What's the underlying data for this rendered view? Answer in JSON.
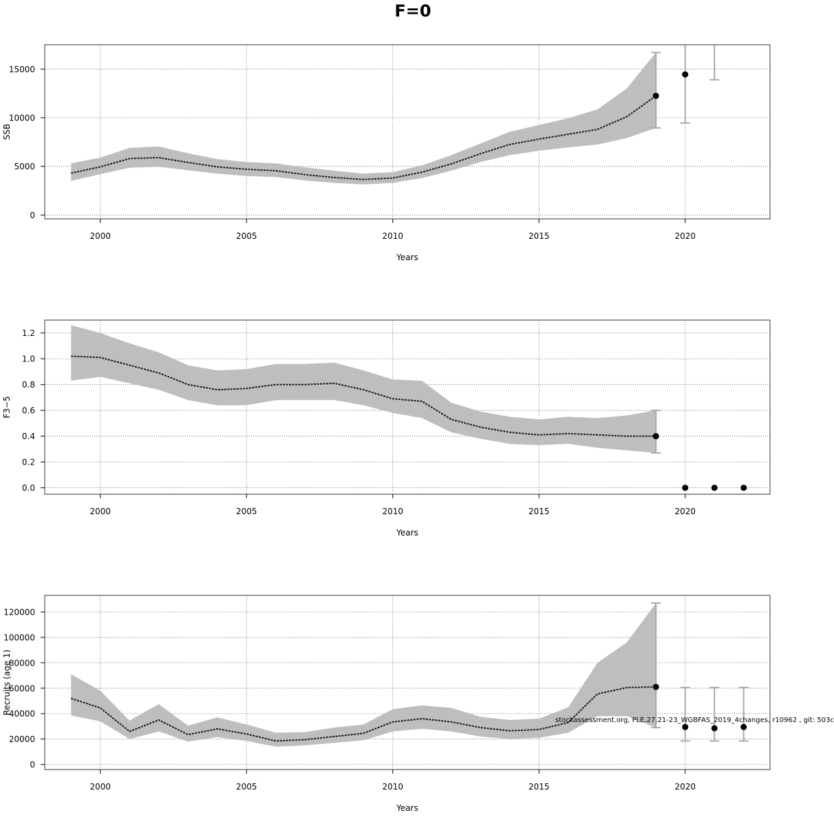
{
  "title": "F=0",
  "footnote": "stockassessment.org, PLE.27.21-23_WGBFAS_2019_4changes, r10962 , git: 503c",
  "colors": {
    "band": "#bebebe",
    "line": "#1a1a1a",
    "point": "#000000",
    "errorbar": "#a9a9a9",
    "grid": "#555555"
  },
  "chart_data": [
    {
      "type": "line",
      "ylabel": "SSB",
      "xlabel": "Years",
      "xlim": [
        1998.1,
        2022.9
      ],
      "ylim": [
        -400,
        17500
      ],
      "xticks": [
        2000,
        2005,
        2010,
        2015,
        2020
      ],
      "yticks": [
        0,
        5000,
        10000,
        15000
      ],
      "grid": true,
      "series": [
        {
          "x": [
            1999,
            2000,
            2001,
            2002,
            2003,
            2004,
            2005,
            2006,
            2007,
            2008,
            2009,
            2010,
            2011,
            2012,
            2013,
            2014,
            2015,
            2016,
            2017,
            2018,
            2019
          ],
          "estimate": [
            4300,
            4950,
            5800,
            5900,
            5400,
            4950,
            4700,
            4550,
            4150,
            3850,
            3650,
            3800,
            4400,
            5250,
            6300,
            7250,
            7800,
            8300,
            8800,
            10100,
            12250
          ],
          "lower": [
            3500,
            4200,
            4850,
            4950,
            4600,
            4250,
            4000,
            3900,
            3550,
            3300,
            3150,
            3300,
            3800,
            4550,
            5450,
            6150,
            6600,
            6950,
            7250,
            7900,
            8950
          ],
          "upper": [
            5300,
            5900,
            6900,
            7050,
            6350,
            5750,
            5450,
            5300,
            4900,
            4550,
            4250,
            4400,
            5100,
            6150,
            7350,
            8550,
            9250,
            9950,
            10850,
            13000,
            16700
          ]
        }
      ],
      "forecast": [
        {
          "x": 2019,
          "value": 12250,
          "lower": 8950,
          "upper": 16700
        },
        {
          "x": 2020,
          "value": 14450,
          "lower": 9450,
          "upper": 17600
        },
        {
          "x": 2021,
          "lower": 13900,
          "upper": 17600
        }
      ]
    },
    {
      "type": "line",
      "ylabel": "F3−5",
      "xlabel": "Years",
      "xlim": [
        1998.1,
        2022.9
      ],
      "ylim": [
        -0.05,
        1.3
      ],
      "xticks": [
        2000,
        2005,
        2010,
        2015,
        2020
      ],
      "yticks": [
        0.0,
        0.2,
        0.4,
        0.6,
        0.8,
        1.0,
        1.2
      ],
      "ytick_labels": [
        "0.0",
        "0.2",
        "0.4",
        "0.6",
        "0.8",
        "1.0",
        "1.2"
      ],
      "grid": true,
      "series": [
        {
          "x": [
            1999,
            2000,
            2001,
            2002,
            2003,
            2004,
            2005,
            2006,
            2007,
            2008,
            2009,
            2010,
            2011,
            2012,
            2013,
            2014,
            2015,
            2016,
            2017,
            2018,
            2019
          ],
          "estimate": [
            1.02,
            1.01,
            0.95,
            0.89,
            0.8,
            0.76,
            0.77,
            0.8,
            0.8,
            0.81,
            0.76,
            0.69,
            0.67,
            0.53,
            0.47,
            0.43,
            0.41,
            0.42,
            0.41,
            0.4,
            0.4
          ],
          "lower": [
            0.83,
            0.86,
            0.81,
            0.76,
            0.68,
            0.64,
            0.64,
            0.68,
            0.68,
            0.68,
            0.64,
            0.58,
            0.54,
            0.43,
            0.38,
            0.34,
            0.33,
            0.34,
            0.31,
            0.29,
            0.27
          ],
          "upper": [
            1.26,
            1.2,
            1.12,
            1.05,
            0.95,
            0.91,
            0.92,
            0.96,
            0.96,
            0.97,
            0.91,
            0.84,
            0.83,
            0.66,
            0.59,
            0.55,
            0.53,
            0.55,
            0.54,
            0.56,
            0.6
          ]
        }
      ],
      "forecast": [
        {
          "x": 2019,
          "value": 0.4,
          "lower": 0.27,
          "upper": 0.6
        },
        {
          "x": 2020,
          "value": 0.0
        },
        {
          "x": 2021,
          "value": 0.0
        },
        {
          "x": 2022,
          "value": 0.0
        }
      ]
    },
    {
      "type": "line",
      "ylabel": "Recruits (age 1)",
      "xlabel": "Years",
      "xlim": [
        1998.1,
        2022.9
      ],
      "ylim": [
        -4000,
        133000
      ],
      "xticks": [
        2000,
        2005,
        2010,
        2015,
        2020
      ],
      "yticks": [
        0,
        20000,
        40000,
        60000,
        80000,
        100000,
        120000
      ],
      "grid": true,
      "series": [
        {
          "x": [
            1999,
            2000,
            2001,
            2002,
            2003,
            2004,
            2005,
            2006,
            2007,
            2008,
            2009,
            2010,
            2011,
            2012,
            2013,
            2014,
            2015,
            2016,
            2017,
            2018,
            2019
          ],
          "estimate": [
            52000,
            44500,
            26000,
            35000,
            23500,
            28000,
            24000,
            18500,
            19500,
            22000,
            24500,
            33500,
            36000,
            33500,
            29000,
            26500,
            27500,
            33000,
            55500,
            60500,
            61000
          ],
          "lower": [
            38500,
            34000,
            20000,
            26000,
            18000,
            21500,
            18500,
            14000,
            15000,
            17000,
            19000,
            26000,
            28000,
            26000,
            22000,
            20000,
            21000,
            25000,
            38000,
            38000,
            29000
          ],
          "upper": [
            71000,
            58000,
            34500,
            47500,
            30500,
            37000,
            31500,
            25000,
            25500,
            29000,
            31500,
            43500,
            46500,
            44500,
            37500,
            35000,
            36000,
            45000,
            80000,
            96000,
            127000
          ]
        }
      ],
      "forecast": [
        {
          "x": 2019,
          "value": 61000,
          "lower": 29000,
          "upper": 127000
        },
        {
          "x": 2020,
          "value": 29500,
          "lower": 18500,
          "upper": 60500
        },
        {
          "x": 2021,
          "value": 28500,
          "lower": 18500,
          "upper": 60500
        },
        {
          "x": 2022,
          "value": 29500,
          "lower": 18500,
          "upper": 60500
        }
      ]
    }
  ]
}
